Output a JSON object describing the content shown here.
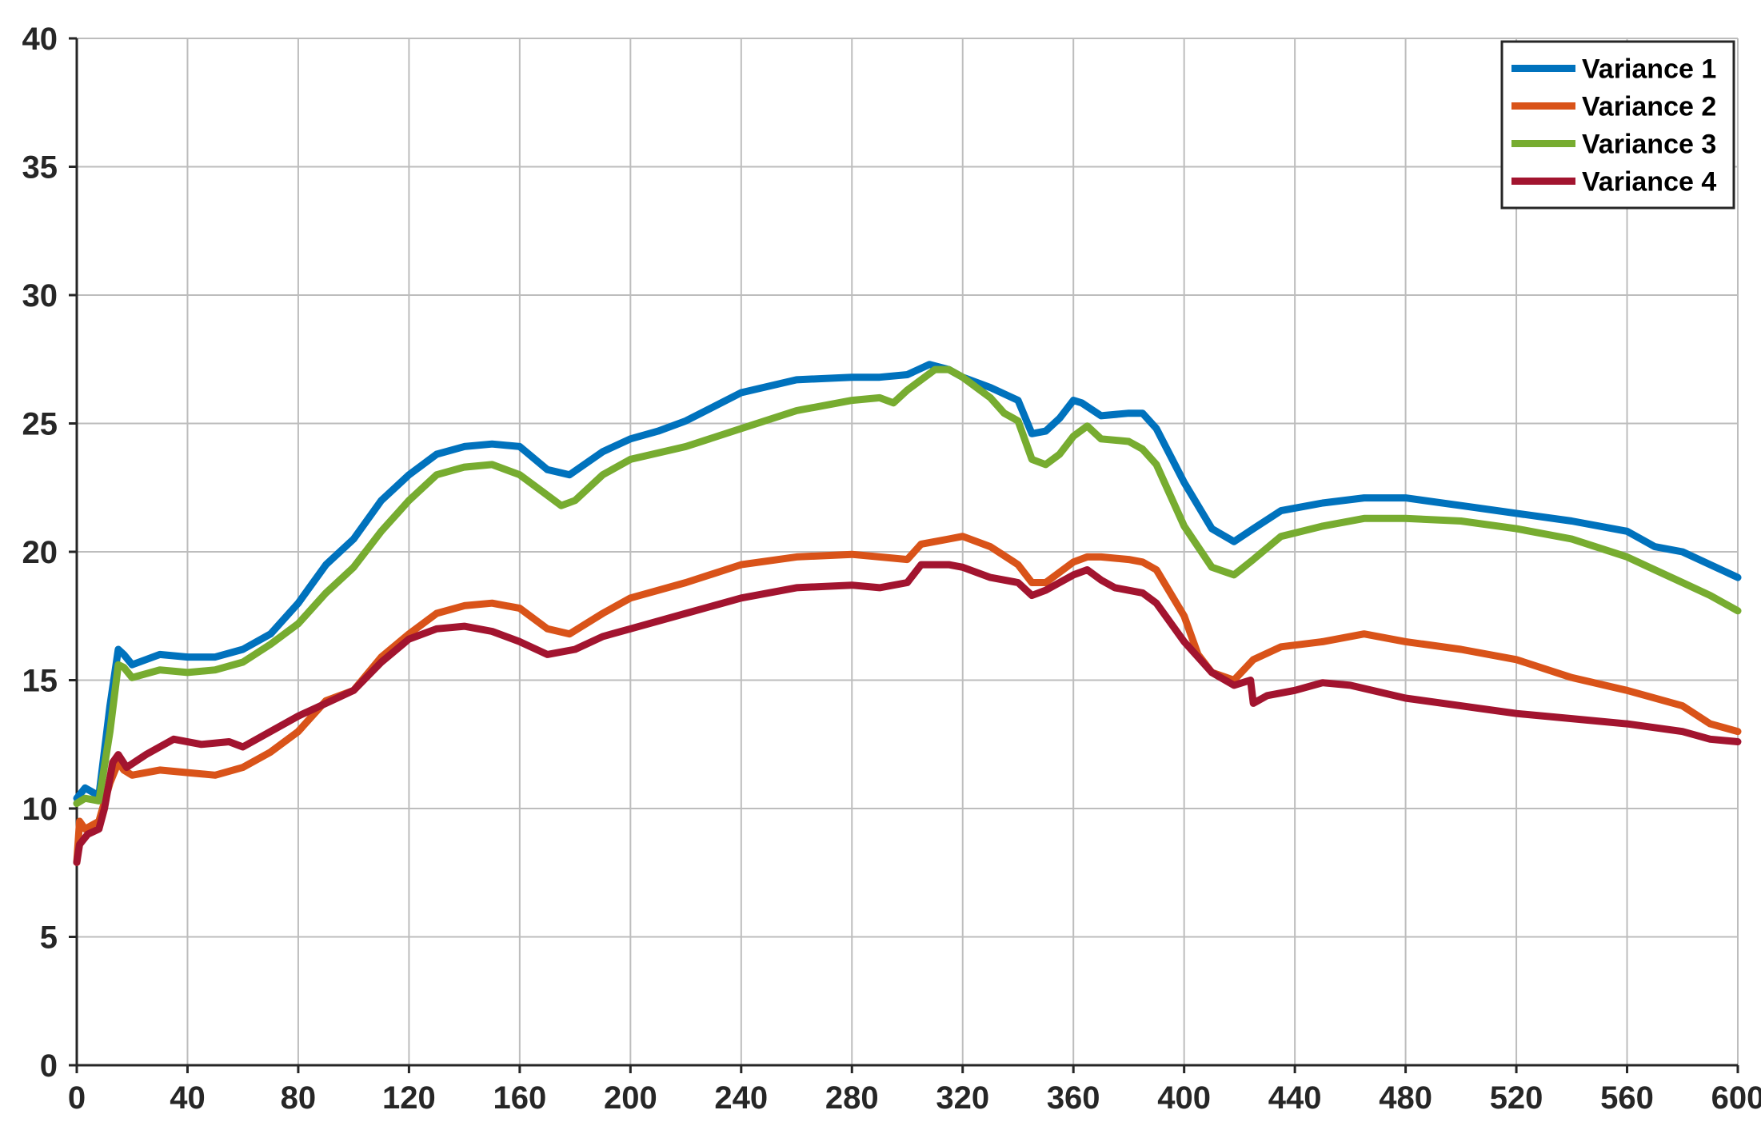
{
  "chart_data": {
    "type": "line",
    "title": "",
    "xlabel": "",
    "ylabel": "",
    "xlim": [
      0,
      600
    ],
    "ylim": [
      0,
      40
    ],
    "xticks": [
      0,
      40,
      80,
      120,
      160,
      200,
      240,
      280,
      320,
      360,
      400,
      440,
      480,
      520,
      560,
      600
    ],
    "yticks": [
      0,
      5,
      10,
      15,
      20,
      25,
      30,
      35,
      40
    ],
    "grid": true,
    "legend_position": "top-right",
    "series": [
      {
        "name": "Variance 1",
        "color": "#0072BD",
        "x": [
          0,
          3,
          8,
          12,
          15,
          17,
          20,
          25,
          30,
          40,
          50,
          60,
          70,
          80,
          90,
          100,
          110,
          120,
          130,
          140,
          150,
          160,
          170,
          178,
          190,
          200,
          210,
          220,
          240,
          260,
          280,
          290,
          300,
          308,
          315,
          320,
          330,
          340,
          345,
          350,
          355,
          360,
          363,
          370,
          380,
          385,
          390,
          400,
          410,
          418,
          425,
          435,
          450,
          465,
          480,
          500,
          520,
          540,
          560,
          570,
          580,
          590,
          600
        ],
        "y": [
          10.4,
          10.8,
          10.5,
          14.0,
          16.2,
          16.0,
          15.6,
          15.8,
          16.0,
          15.9,
          15.9,
          16.2,
          16.8,
          18.0,
          19.5,
          20.5,
          22.0,
          23.0,
          23.8,
          24.1,
          24.2,
          24.1,
          23.2,
          23.0,
          23.9,
          24.4,
          24.7,
          25.1,
          26.2,
          26.7,
          26.8,
          26.8,
          26.9,
          27.3,
          27.1,
          26.8,
          26.4,
          25.9,
          24.6,
          24.7,
          25.2,
          25.9,
          25.8,
          25.3,
          25.4,
          25.4,
          24.8,
          22.7,
          20.9,
          20.4,
          20.9,
          21.6,
          21.9,
          22.1,
          22.1,
          21.8,
          21.5,
          21.2,
          20.8,
          20.2,
          20.0,
          19.5,
          19.0
        ]
      },
      {
        "name": "Variance 2",
        "color": "#D95319",
        "x": [
          0,
          1,
          3,
          8,
          12,
          15,
          17,
          20,
          30,
          40,
          50,
          60,
          70,
          80,
          90,
          100,
          110,
          120,
          130,
          140,
          150,
          160,
          170,
          178,
          190,
          200,
          220,
          240,
          260,
          280,
          290,
          300,
          305,
          315,
          320,
          330,
          340,
          345,
          350,
          360,
          365,
          370,
          380,
          385,
          390,
          400,
          405,
          410,
          418,
          425,
          435,
          450,
          465,
          480,
          500,
          520,
          540,
          560,
          580,
          590,
          600
        ],
        "y": [
          7.9,
          9.5,
          9.2,
          9.5,
          11.0,
          11.8,
          11.5,
          11.3,
          11.5,
          11.4,
          11.3,
          11.6,
          12.2,
          13.0,
          14.2,
          14.6,
          15.9,
          16.8,
          17.6,
          17.9,
          18.0,
          17.8,
          17.0,
          16.8,
          17.6,
          18.2,
          18.8,
          19.5,
          19.8,
          19.9,
          19.8,
          19.7,
          20.3,
          20.5,
          20.6,
          20.2,
          19.5,
          18.8,
          18.8,
          19.6,
          19.8,
          19.8,
          19.7,
          19.6,
          19.3,
          17.5,
          16.0,
          15.3,
          15.0,
          15.8,
          16.3,
          16.5,
          16.8,
          16.5,
          16.2,
          15.8,
          15.1,
          14.6,
          14.0,
          13.3,
          13.0
        ]
      },
      {
        "name": "Variance 3",
        "color": "#77AC30",
        "x": [
          0,
          3,
          8,
          12,
          15,
          17,
          20,
          30,
          40,
          50,
          60,
          70,
          80,
          90,
          100,
          110,
          120,
          130,
          140,
          150,
          160,
          170,
          175,
          180,
          190,
          200,
          220,
          240,
          260,
          280,
          290,
          295,
          300,
          310,
          315,
          320,
          330,
          335,
          340,
          345,
          350,
          355,
          360,
          365,
          370,
          380,
          385,
          390,
          400,
          410,
          418,
          425,
          435,
          450,
          465,
          480,
          500,
          520,
          540,
          560,
          570,
          580,
          590,
          600
        ],
        "y": [
          10.2,
          10.4,
          10.3,
          13.0,
          15.6,
          15.5,
          15.1,
          15.4,
          15.3,
          15.4,
          15.7,
          16.4,
          17.2,
          18.4,
          19.4,
          20.8,
          22.0,
          23.0,
          23.3,
          23.4,
          23.0,
          22.2,
          21.8,
          22.0,
          23.0,
          23.6,
          24.1,
          24.8,
          25.5,
          25.9,
          26.0,
          25.8,
          26.3,
          27.1,
          27.1,
          26.8,
          26.0,
          25.4,
          25.1,
          23.6,
          23.4,
          23.8,
          24.5,
          24.9,
          24.4,
          24.3,
          24.0,
          23.4,
          21.0,
          19.4,
          19.1,
          19.7,
          20.6,
          21.0,
          21.3,
          21.3,
          21.2,
          20.9,
          20.5,
          19.8,
          19.3,
          18.8,
          18.3,
          17.7
        ]
      },
      {
        "name": "Variance 4",
        "color": "#A2142F",
        "x": [
          0,
          1,
          4,
          8,
          10,
          13,
          15,
          18,
          25,
          35,
          45,
          55,
          60,
          70,
          80,
          90,
          100,
          110,
          120,
          130,
          140,
          150,
          160,
          170,
          180,
          190,
          200,
          220,
          240,
          260,
          280,
          290,
          300,
          305,
          315,
          320,
          330,
          340,
          345,
          350,
          360,
          365,
          370,
          375,
          385,
          390,
          400,
          410,
          418,
          424,
          425,
          430,
          440,
          450,
          460,
          480,
          500,
          520,
          540,
          560,
          580,
          590,
          600
        ],
        "y": [
          7.9,
          8.6,
          9.0,
          9.2,
          10.0,
          11.8,
          12.1,
          11.6,
          12.1,
          12.7,
          12.5,
          12.6,
          12.4,
          13.0,
          13.6,
          14.1,
          14.6,
          15.7,
          16.6,
          17.0,
          17.1,
          16.9,
          16.5,
          16.0,
          16.2,
          16.7,
          17.0,
          17.6,
          18.2,
          18.6,
          18.7,
          18.6,
          18.8,
          19.5,
          19.5,
          19.4,
          19.0,
          18.8,
          18.3,
          18.5,
          19.1,
          19.3,
          18.9,
          18.6,
          18.4,
          18.0,
          16.5,
          15.3,
          14.8,
          15.0,
          14.1,
          14.4,
          14.6,
          14.9,
          14.8,
          14.3,
          14.0,
          13.7,
          13.5,
          13.3,
          13.0,
          12.7,
          12.6
        ]
      }
    ]
  }
}
